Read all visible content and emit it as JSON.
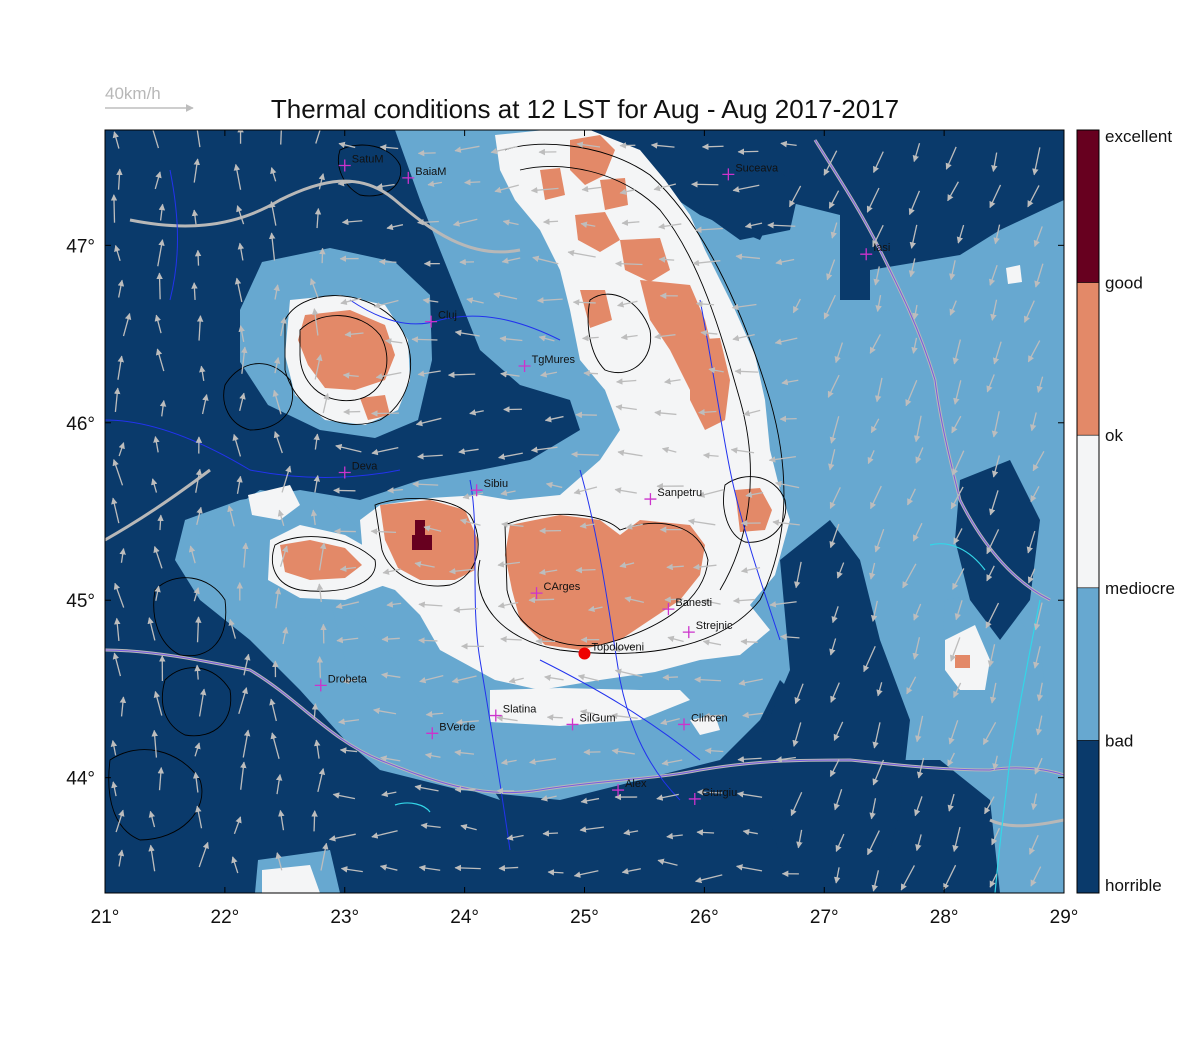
{
  "map": {
    "title": "Thermal conditions at 12 LST for Aug - Aug  2017-2017",
    "wind_scale_label": "40km/h",
    "x_ticks": [
      "21°",
      "22°",
      "23°",
      "24°",
      "25°",
      "26°",
      "27°",
      "28°",
      "29°"
    ],
    "y_ticks": [
      "47°",
      "46°",
      "45°",
      "44°"
    ],
    "lon_range": [
      21,
      29
    ],
    "lat_range": [
      43.35,
      47.65
    ],
    "cities": [
      {
        "name": "SatuM",
        "lon": 23.0,
        "lat": 47.45
      },
      {
        "name": "BaiaM",
        "lon": 23.53,
        "lat": 47.38
      },
      {
        "name": "Suceava",
        "lon": 26.2,
        "lat": 47.4
      },
      {
        "name": "Iasi",
        "lon": 27.35,
        "lat": 46.95
      },
      {
        "name": "Cluj",
        "lon": 23.72,
        "lat": 46.57
      },
      {
        "name": "TgMures",
        "lon": 24.5,
        "lat": 46.32
      },
      {
        "name": "Deva",
        "lon": 23.0,
        "lat": 45.72
      },
      {
        "name": "Sibiu",
        "lon": 24.1,
        "lat": 45.62
      },
      {
        "name": "Sanpetru",
        "lon": 25.55,
        "lat": 45.57
      },
      {
        "name": "CArges",
        "lon": 24.6,
        "lat": 45.04
      },
      {
        "name": "Banesti",
        "lon": 25.7,
        "lat": 44.95
      },
      {
        "name": "Strejnic",
        "lon": 25.87,
        "lat": 44.82
      },
      {
        "name": "Topoloveni",
        "lon": 25.0,
        "lat": 44.7,
        "highlight": true
      },
      {
        "name": "Drobeta",
        "lon": 22.8,
        "lat": 44.52
      },
      {
        "name": "Slatina",
        "lon": 24.26,
        "lat": 44.35
      },
      {
        "name": "SilGum",
        "lon": 24.9,
        "lat": 44.3
      },
      {
        "name": "Clincen",
        "lon": 25.83,
        "lat": 44.3
      },
      {
        "name": "BVerde",
        "lon": 23.73,
        "lat": 44.25
      },
      {
        "name": "Alex",
        "lon": 25.28,
        "lat": 43.93
      },
      {
        "name": "Giurgiu",
        "lon": 25.92,
        "lat": 43.88
      }
    ]
  },
  "legend": {
    "labels": [
      "excellent",
      "good",
      "ok",
      "mediocre",
      "bad",
      "horrible"
    ],
    "colors": [
      "#67001f",
      "#e38968",
      "#f4f5f6",
      "#67a8d0",
      "#0a3a6b"
    ]
  },
  "colors": {
    "horrible": "#0a3a6b",
    "bad": "#67a8d0",
    "mediocre": "#f4f5f6",
    "good": "#e38968",
    "excellent": "#67001f",
    "wind_arrow": "#bdbdbd",
    "city_marker": "#cc33cc",
    "highlight_marker": "#ee0000"
  }
}
